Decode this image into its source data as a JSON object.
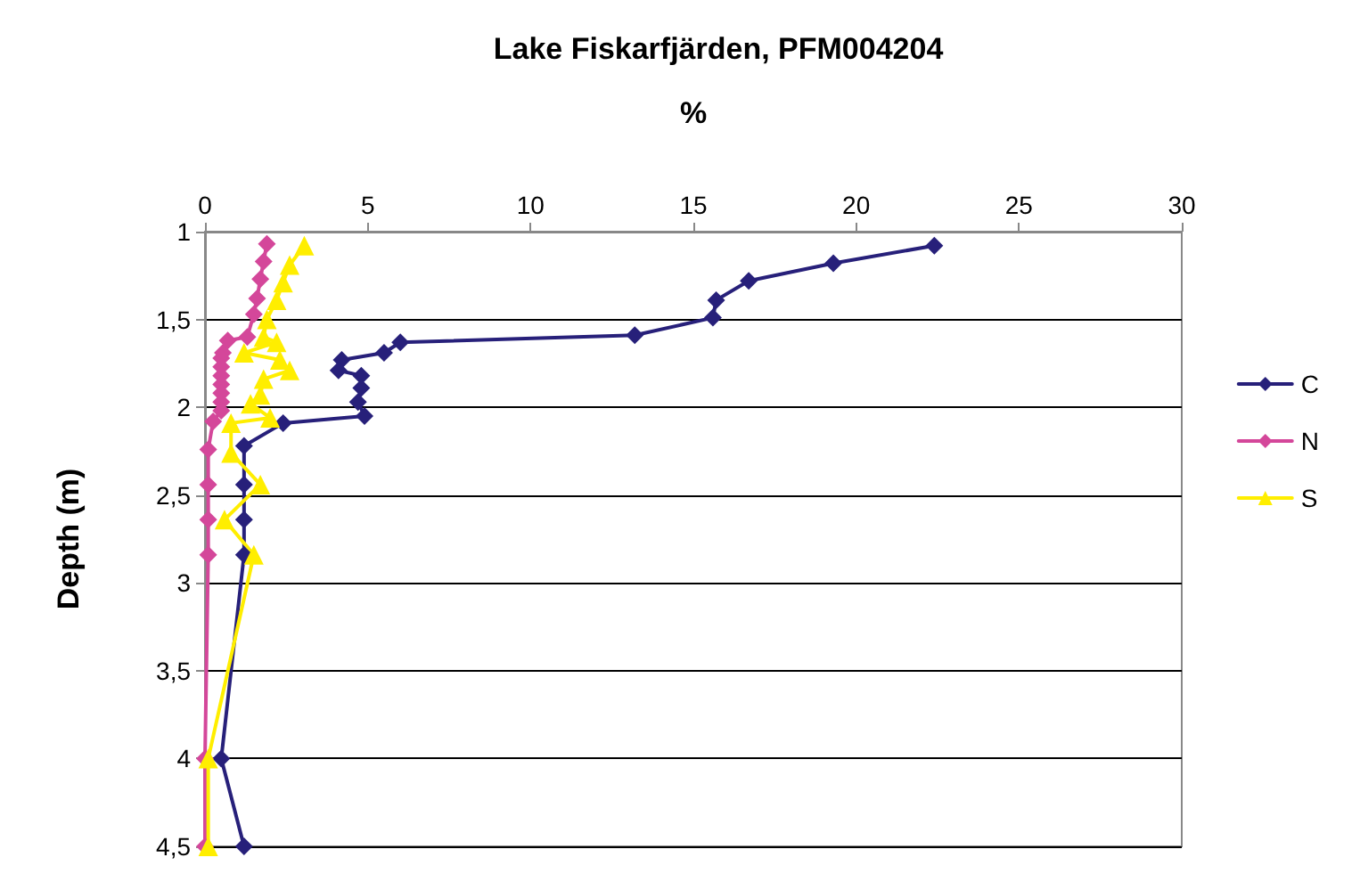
{
  "chart_data": {
    "type": "line",
    "title": "Lake Fiskarfjärden, PFM004204",
    "xlabel": "%",
    "ylabel": "Depth (m)",
    "xlim": [
      0,
      30
    ],
    "xticks": [
      0,
      5,
      10,
      15,
      20,
      25,
      30
    ],
    "ylim": [
      4.5,
      1
    ],
    "yticks": [
      {
        "value": 1,
        "label": "1"
      },
      {
        "value": 1.5,
        "label": "1,5"
      },
      {
        "value": 2,
        "label": "2"
      },
      {
        "value": 2.5,
        "label": "2,5"
      },
      {
        "value": 3,
        "label": "3"
      },
      {
        "value": 3.5,
        "label": "3,5"
      },
      {
        "value": 4,
        "label": "4"
      },
      {
        "value": 4.5,
        "label": "4,5"
      }
    ],
    "grid": "y",
    "legend": "right",
    "series": [
      {
        "name": "C",
        "color": "#27207a",
        "marker": "diamond",
        "x": [
          22.4,
          19.3,
          16.7,
          15.7,
          15.6,
          13.2,
          6.0,
          5.5,
          4.2,
          4.1,
          4.8,
          4.8,
          4.7,
          4.9,
          2.4,
          1.2,
          1.2,
          1.2,
          1.2,
          0.5,
          1.2
        ],
        "values": [
          1.08,
          1.18,
          1.28,
          1.39,
          1.49,
          1.59,
          1.63,
          1.69,
          1.73,
          1.79,
          1.82,
          1.89,
          1.97,
          2.05,
          2.09,
          2.22,
          2.44,
          2.64,
          2.84,
          4.0,
          4.5
        ]
      },
      {
        "name": "N",
        "color": "#d4479a",
        "marker": "diamond",
        "x": [
          1.9,
          1.8,
          1.7,
          1.6,
          1.5,
          1.3,
          0.7,
          0.55,
          0.5,
          0.5,
          0.5,
          0.5,
          0.5,
          0.5,
          0.5,
          0.25,
          0.1,
          0.1,
          0.1,
          0.1,
          0.0,
          0.0
        ],
        "values": [
          1.07,
          1.17,
          1.27,
          1.38,
          1.47,
          1.6,
          1.62,
          1.69,
          1.72,
          1.77,
          1.82,
          1.87,
          1.92,
          1.97,
          2.02,
          2.08,
          2.24,
          2.44,
          2.64,
          2.84,
          4.0,
          4.5
        ]
      },
      {
        "name": "S",
        "color": "#ffee00",
        "marker": "triangle",
        "x": [
          3.05,
          2.6,
          2.4,
          2.2,
          1.9,
          1.8,
          2.2,
          1.2,
          2.3,
          2.6,
          1.8,
          1.7,
          1.4,
          2.0,
          0.8,
          0.8,
          1.7,
          0.6,
          1.5,
          0.1,
          0.1
        ],
        "values": [
          1.08,
          1.19,
          1.29,
          1.39,
          1.5,
          1.6,
          1.63,
          1.69,
          1.73,
          1.79,
          1.84,
          1.93,
          1.98,
          2.06,
          2.09,
          2.26,
          2.44,
          2.64,
          2.84,
          4.0,
          4.5
        ]
      }
    ]
  }
}
